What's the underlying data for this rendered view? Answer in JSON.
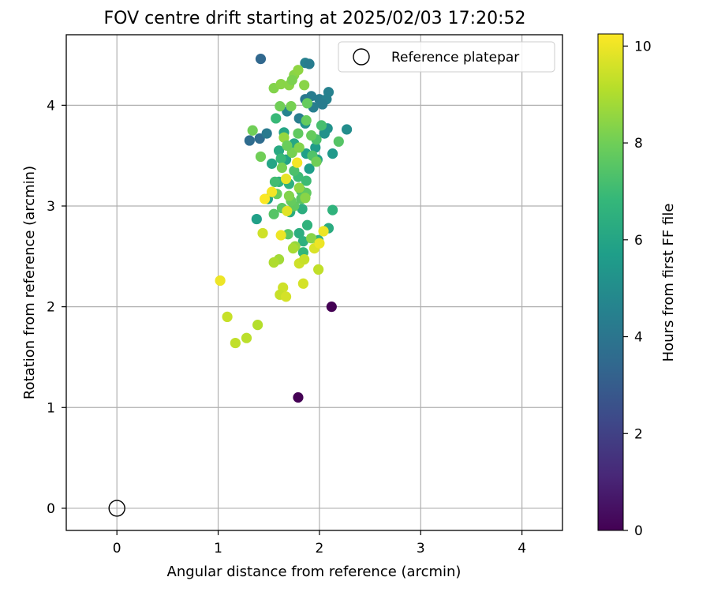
{
  "chart_data": {
    "type": "scatter",
    "title": "FOV centre drift starting at 2025/02/03 17:20:52",
    "xlabel": "Angular distance from reference (arcmin)",
    "ylabel": "Rotation from reference (arcmin)",
    "xlim": [
      -0.5,
      4.4
    ],
    "ylim": [
      -0.22,
      4.7
    ],
    "xticks": [
      0,
      1,
      2,
      3,
      4
    ],
    "yticks": [
      0,
      1,
      2,
      3,
      4
    ],
    "grid": true,
    "legend": {
      "placement": "top-right",
      "label": "Reference platepar"
    },
    "colorbar": {
      "label": "Hours from first FF file",
      "range": [
        0,
        10.25
      ],
      "ticks": [
        0,
        2,
        4,
        6,
        8,
        10
      ],
      "colormap": "viridis"
    },
    "reference_point": {
      "x": 0,
      "y": 0
    },
    "points": [
      {
        "x": 2.12,
        "y": 2.0,
        "t": 0.0
      },
      {
        "x": 1.79,
        "y": 1.1,
        "t": 0.0
      },
      {
        "x": 1.42,
        "y": 4.46,
        "t": 3.4
      },
      {
        "x": 1.31,
        "y": 3.65,
        "t": 3.6
      },
      {
        "x": 1.41,
        "y": 3.67,
        "t": 3.6
      },
      {
        "x": 1.48,
        "y": 3.72,
        "t": 4.2
      },
      {
        "x": 1.86,
        "y": 4.42,
        "t": 4.5
      },
      {
        "x": 1.9,
        "y": 4.41,
        "t": 4.3
      },
      {
        "x": 1.92,
        "y": 4.09,
        "t": 4.3
      },
      {
        "x": 2.0,
        "y": 4.06,
        "t": 4.3
      },
      {
        "x": 2.09,
        "y": 4.13,
        "t": 4.5
      },
      {
        "x": 2.07,
        "y": 4.06,
        "t": 4.5
      },
      {
        "x": 2.03,
        "y": 4.01,
        "t": 4.3
      },
      {
        "x": 1.86,
        "y": 4.06,
        "t": 4.1
      },
      {
        "x": 1.94,
        "y": 3.98,
        "t": 4.4
      },
      {
        "x": 1.8,
        "y": 3.87,
        "t": 4.4
      },
      {
        "x": 1.68,
        "y": 3.94,
        "t": 4.6
      },
      {
        "x": 1.86,
        "y": 3.82,
        "t": 5.2
      },
      {
        "x": 2.08,
        "y": 3.77,
        "t": 5.2
      },
      {
        "x": 2.27,
        "y": 3.76,
        "t": 5.0
      },
      {
        "x": 2.05,
        "y": 3.72,
        "t": 5.2
      },
      {
        "x": 2.13,
        "y": 3.52,
        "t": 5.5
      },
      {
        "x": 1.96,
        "y": 3.58,
        "t": 5.6
      },
      {
        "x": 1.87,
        "y": 3.52,
        "t": 5.8
      },
      {
        "x": 1.98,
        "y": 3.46,
        "t": 5.8
      },
      {
        "x": 1.9,
        "y": 3.37,
        "t": 5.7
      },
      {
        "x": 1.67,
        "y": 3.46,
        "t": 5.9
      },
      {
        "x": 1.53,
        "y": 3.42,
        "t": 6.0
      },
      {
        "x": 1.65,
        "y": 3.73,
        "t": 6.0
      },
      {
        "x": 1.75,
        "y": 3.62,
        "t": 6.1
      },
      {
        "x": 1.6,
        "y": 3.55,
        "t": 6.2
      },
      {
        "x": 1.38,
        "y": 2.87,
        "t": 5.8
      },
      {
        "x": 1.49,
        "y": 3.07,
        "t": 5.9
      },
      {
        "x": 1.8,
        "y": 2.73,
        "t": 6.4
      },
      {
        "x": 1.84,
        "y": 2.65,
        "t": 6.5
      },
      {
        "x": 1.83,
        "y": 2.97,
        "t": 6.4
      },
      {
        "x": 1.71,
        "y": 2.94,
        "t": 6.3
      },
      {
        "x": 1.88,
        "y": 2.81,
        "t": 6.6
      },
      {
        "x": 2.13,
        "y": 2.96,
        "t": 6.6
      },
      {
        "x": 2.09,
        "y": 2.78,
        "t": 6.3
      },
      {
        "x": 1.99,
        "y": 2.66,
        "t": 6.6
      },
      {
        "x": 1.84,
        "y": 2.54,
        "t": 6.8
      },
      {
        "x": 1.6,
        "y": 3.24,
        "t": 6.6
      },
      {
        "x": 1.7,
        "y": 3.22,
        "t": 6.5
      },
      {
        "x": 1.79,
        "y": 3.29,
        "t": 7.0
      },
      {
        "x": 1.87,
        "y": 3.25,
        "t": 7.0
      },
      {
        "x": 1.82,
        "y": 3.15,
        "t": 7.2
      },
      {
        "x": 1.57,
        "y": 3.87,
        "t": 6.9
      },
      {
        "x": 1.62,
        "y": 3.47,
        "t": 6.9
      },
      {
        "x": 2.02,
        "y": 3.8,
        "t": 7.2
      },
      {
        "x": 1.97,
        "y": 3.66,
        "t": 7.3
      },
      {
        "x": 2.19,
        "y": 3.64,
        "t": 7.5
      },
      {
        "x": 1.93,
        "y": 3.5,
        "t": 7.4
      },
      {
        "x": 1.75,
        "y": 3.35,
        "t": 7.3
      },
      {
        "x": 1.56,
        "y": 3.24,
        "t": 7.1
      },
      {
        "x": 1.55,
        "y": 2.92,
        "t": 7.5
      },
      {
        "x": 1.69,
        "y": 2.72,
        "t": 7.6
      },
      {
        "x": 1.63,
        "y": 2.98,
        "t": 7.6
      },
      {
        "x": 1.75,
        "y": 3.0,
        "t": 7.7
      },
      {
        "x": 1.82,
        "y": 3.07,
        "t": 7.6
      },
      {
        "x": 1.87,
        "y": 3.13,
        "t": 7.7
      },
      {
        "x": 1.72,
        "y": 3.05,
        "t": 7.8
      },
      {
        "x": 1.58,
        "y": 3.12,
        "t": 7.9
      },
      {
        "x": 1.34,
        "y": 3.75,
        "t": 8.0
      },
      {
        "x": 1.42,
        "y": 3.49,
        "t": 8.0
      },
      {
        "x": 1.61,
        "y": 3.99,
        "t": 8.0
      },
      {
        "x": 1.72,
        "y": 3.99,
        "t": 8.1
      },
      {
        "x": 1.88,
        "y": 4.02,
        "t": 7.8
      },
      {
        "x": 1.55,
        "y": 4.17,
        "t": 8.3
      },
      {
        "x": 1.62,
        "y": 4.21,
        "t": 8.4
      },
      {
        "x": 1.7,
        "y": 4.2,
        "t": 8.4
      },
      {
        "x": 1.75,
        "y": 4.3,
        "t": 8.4
      },
      {
        "x": 1.79,
        "y": 4.35,
        "t": 8.5
      },
      {
        "x": 1.85,
        "y": 4.2,
        "t": 8.4
      },
      {
        "x": 1.73,
        "y": 4.25,
        "t": 8.2
      },
      {
        "x": 1.65,
        "y": 3.68,
        "t": 8.6
      },
      {
        "x": 1.73,
        "y": 3.53,
        "t": 8.1
      },
      {
        "x": 1.8,
        "y": 3.58,
        "t": 8.3
      },
      {
        "x": 1.68,
        "y": 3.6,
        "t": 7.9
      },
      {
        "x": 1.63,
        "y": 3.38,
        "t": 8.1
      },
      {
        "x": 1.87,
        "y": 3.85,
        "t": 7.8
      },
      {
        "x": 1.79,
        "y": 3.72,
        "t": 7.7
      },
      {
        "x": 1.92,
        "y": 3.7,
        "t": 7.8
      },
      {
        "x": 1.97,
        "y": 3.44,
        "t": 8.0
      },
      {
        "x": 1.8,
        "y": 3.18,
        "t": 8.5
      },
      {
        "x": 1.86,
        "y": 3.08,
        "t": 8.4
      },
      {
        "x": 1.7,
        "y": 3.1,
        "t": 8.3
      },
      {
        "x": 1.76,
        "y": 2.6,
        "t": 8.6
      },
      {
        "x": 1.92,
        "y": 2.68,
        "t": 8.4
      },
      {
        "x": 1.6,
        "y": 2.47,
        "t": 8.8
      },
      {
        "x": 1.44,
        "y": 2.73,
        "t": 9.5
      },
      {
        "x": 1.68,
        "y": 2.95,
        "t": 9.8
      },
      {
        "x": 1.74,
        "y": 2.58,
        "t": 8.9
      },
      {
        "x": 1.55,
        "y": 2.44,
        "t": 9.0
      },
      {
        "x": 1.67,
        "y": 3.27,
        "t": 9.9
      },
      {
        "x": 1.78,
        "y": 3.43,
        "t": 10.1
      },
      {
        "x": 1.53,
        "y": 3.14,
        "t": 10.1
      },
      {
        "x": 1.46,
        "y": 3.07,
        "t": 10.2
      },
      {
        "x": 1.62,
        "y": 2.71,
        "t": 10.0
      },
      {
        "x": 2.04,
        "y": 2.75,
        "t": 10.0
      },
      {
        "x": 1.95,
        "y": 2.58,
        "t": 9.7
      },
      {
        "x": 2.0,
        "y": 2.63,
        "t": 10.0
      },
      {
        "x": 1.8,
        "y": 2.43,
        "t": 9.5
      },
      {
        "x": 1.85,
        "y": 2.47,
        "t": 9.4
      },
      {
        "x": 1.99,
        "y": 2.37,
        "t": 9.3
      },
      {
        "x": 1.84,
        "y": 2.23,
        "t": 9.6
      },
      {
        "x": 1.64,
        "y": 2.19,
        "t": 9.5
      },
      {
        "x": 1.61,
        "y": 2.12,
        "t": 9.4
      },
      {
        "x": 1.67,
        "y": 2.1,
        "t": 9.6
      },
      {
        "x": 1.02,
        "y": 2.26,
        "t": 10.0
      },
      {
        "x": 1.09,
        "y": 1.9,
        "t": 9.4
      },
      {
        "x": 1.17,
        "y": 1.64,
        "t": 9.3
      },
      {
        "x": 1.28,
        "y": 1.69,
        "t": 9.2
      },
      {
        "x": 1.39,
        "y": 1.82,
        "t": 9.1
      }
    ]
  }
}
